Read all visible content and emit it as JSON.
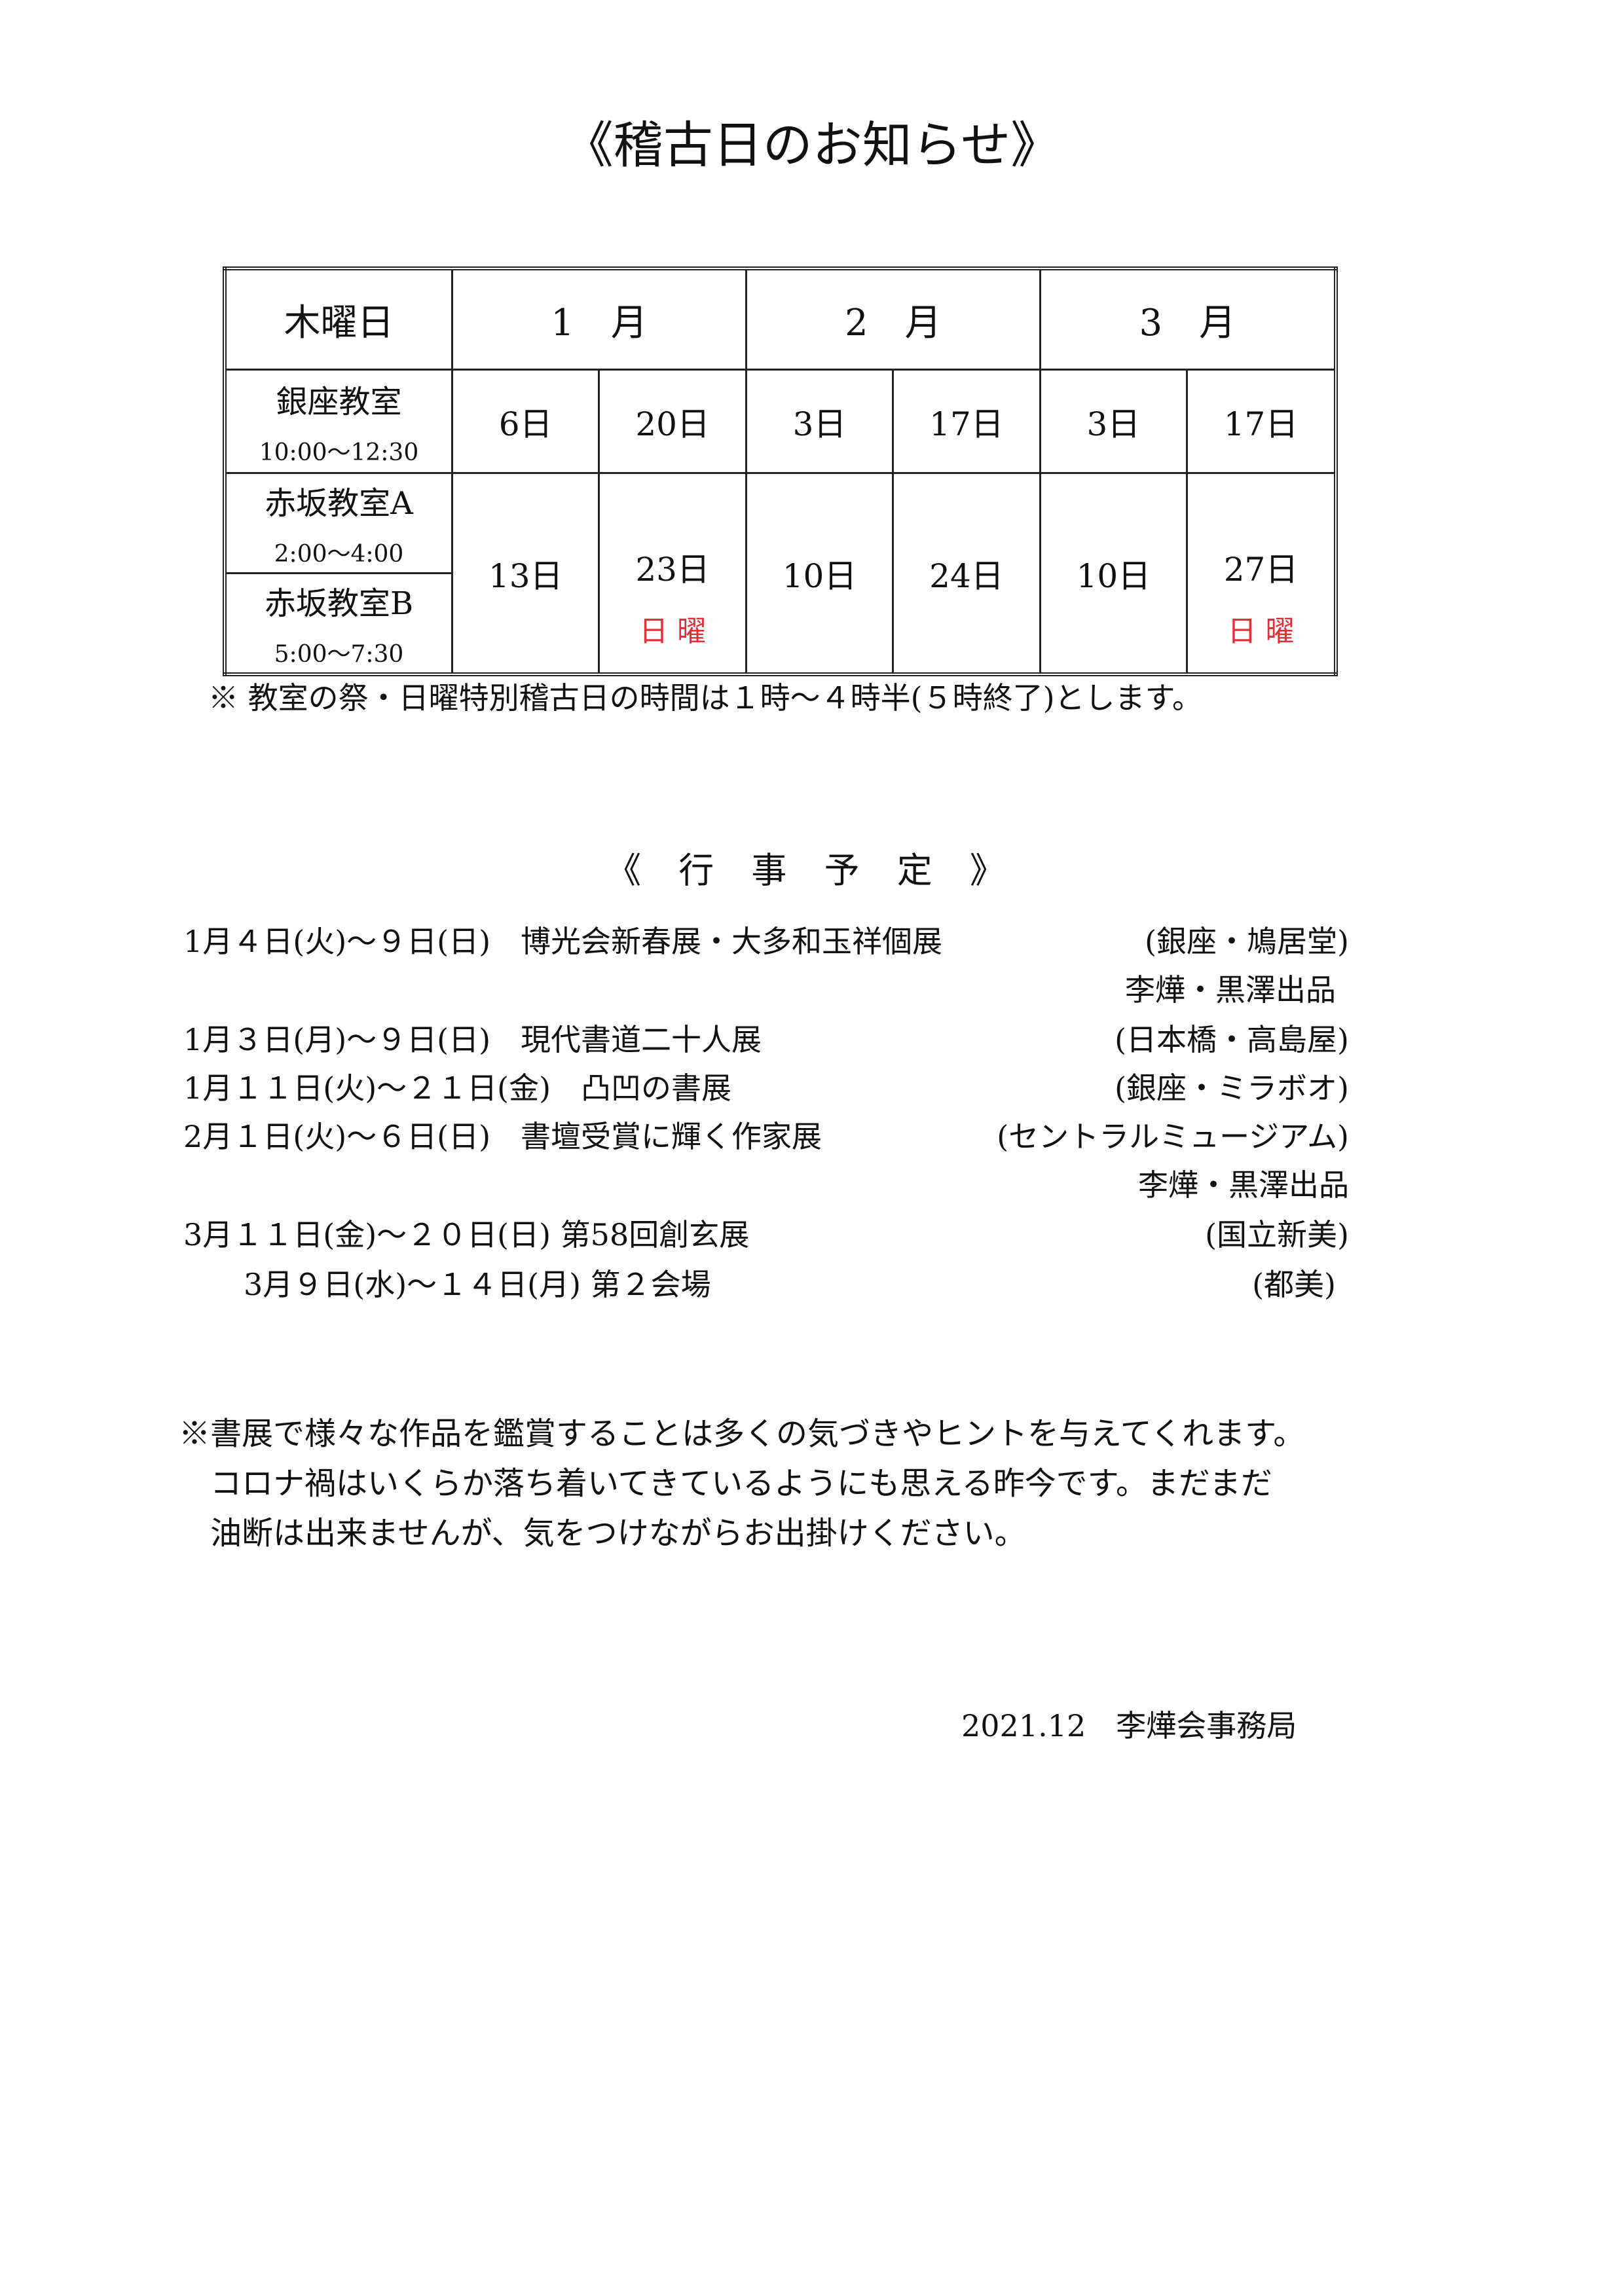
{
  "title": "《稽古日のお知らせ》",
  "schedule": {
    "header": {
      "label": "木曜日",
      "months": [
        "1　月",
        "2　月",
        "3　月"
      ]
    },
    "ginza": {
      "name": "銀座教室",
      "time": "10:00〜12:30",
      "dates": [
        "6日",
        "20日",
        "3日",
        "17日",
        "3日",
        "17日"
      ]
    },
    "akasaka_a": {
      "name": "赤坂教室A",
      "time": "2:00〜4:00"
    },
    "akasaka_b": {
      "name": "赤坂教室B",
      "time": "5:00〜7:30"
    },
    "akasaka_dates": [
      "13日",
      "23日",
      "10日",
      "24日",
      "10日",
      "27日"
    ],
    "sunday_note": "日 曜",
    "sunday_color": "#e0303a"
  },
  "note": "※ 教室の祭・日曜特別稽古日の時間は１時〜４時半(５時終了)とします。",
  "events_title": "《 行 事 予 定 》",
  "events": [
    {
      "date": "1月４日(火)〜９日(日)　博光会新春展・大多和玉祥個展",
      "place": "(銀座・鳩居堂)"
    },
    {
      "date": "",
      "place": "李燁・黒澤出品"
    },
    {
      "date": "1月３日(月)〜９日(日)　現代書道二十人展",
      "place": "(日本橋・高島屋)"
    },
    {
      "date": "1月１１日(火)〜２１日(金)　凸凹の書展",
      "place": "(銀座・ミラボオ)"
    },
    {
      "date": "2月１日(火)〜６日(日)　書壇受賞に輝く作家展",
      "place": "(セントラルミュージアム)"
    },
    {
      "date": "",
      "place": "李燁・黒澤出品"
    },
    {
      "date": "3月１１日(金)〜２０日(日) 第58回創玄展",
      "place": "(国立新美)"
    },
    {
      "date": "　　3月９日(水)〜１４日(月) 第２会場",
      "place": "(都美)"
    }
  ],
  "message": [
    "※書展で様々な作品を鑑賞することは多くの気づきやヒントを与えてくれます。",
    "　コロナ禍はいくらか落ち着いてきているようにも思える昨今です。まだまだ",
    "　油断は出来ませんが、気をつけながらお出掛けください。"
  ],
  "signature": "2021.12　李燁会事務局"
}
